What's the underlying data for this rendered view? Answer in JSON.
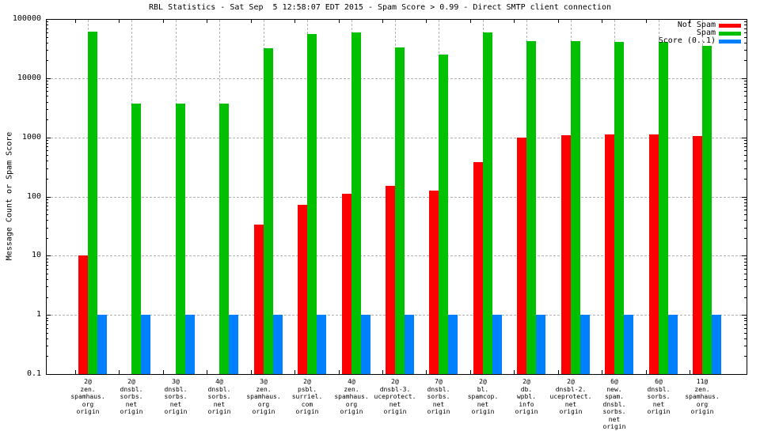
{
  "chart_data": {
    "type": "bar",
    "title": "RBL Statistics - Sat Sep  5 12:58:07 EDT 2015 - Spam Score > 0.99 - Direct SMTP client connection",
    "ylabel": "Message Count or Spam Score",
    "xlabel": "",
    "y_scale": "log",
    "ylim": [
      0.1,
      100000
    ],
    "grid": true,
    "legend_position": "top-right-inside",
    "yticks": [
      {
        "value": 100000,
        "label": "100000"
      },
      {
        "value": 10000,
        "label": "10000"
      },
      {
        "value": 1000,
        "label": "1000"
      },
      {
        "value": 100,
        "label": "100"
      },
      {
        "value": 10,
        "label": "10"
      },
      {
        "value": 1,
        "label": "1"
      },
      {
        "value": 0.1,
        "label": "0.1"
      }
    ],
    "categories": [
      [
        "2@",
        "zen.",
        "spamhaus.",
        "org",
        "origin"
      ],
      [
        "2@",
        "dnsbl.",
        "sorbs.",
        "net",
        "origin"
      ],
      [
        "3@",
        "dnsbl.",
        "sorbs.",
        "net",
        "origin"
      ],
      [
        "4@",
        "dnsbl.",
        "sorbs.",
        "net",
        "origin"
      ],
      [
        "3@",
        "zen.",
        "spamhaus.",
        "org",
        "origin"
      ],
      [
        "2@",
        "psbl.",
        "surriel.",
        "com",
        "origin"
      ],
      [
        "4@",
        "zen.",
        "spamhaus.",
        "org",
        "origin"
      ],
      [
        "2@",
        "dnsbl-3.",
        "uceprotect.",
        "net",
        "origin"
      ],
      [
        "7@",
        "dnsbl.",
        "sorbs.",
        "net",
        "origin"
      ],
      [
        "2@",
        "bl.",
        "spamcop.",
        "net",
        "origin"
      ],
      [
        "2@",
        "db.",
        "wpbl.",
        "info",
        "origin"
      ],
      [
        "2@",
        "dnsbl-2.",
        "uceprotect.",
        "net",
        "origin"
      ],
      [
        "6@",
        "new.",
        "spam.",
        "dnsbl.",
        "sorbs.",
        "net",
        "origin"
      ],
      [
        "6@",
        "dnsbl.",
        "sorbs.",
        "net",
        "origin"
      ],
      [
        "11@",
        "zen.",
        "spamhaus.",
        "org",
        "origin"
      ]
    ],
    "series": [
      {
        "name": "Not Spam",
        "color": "#ff0000",
        "values": [
          10,
          null,
          null,
          null,
          34,
          73,
          110,
          150,
          125,
          380,
          1000,
          1090,
          1130,
          1130,
          1050
        ]
      },
      {
        "name": "Spam",
        "color": "#00c000",
        "values": [
          62000,
          3700,
          3700,
          3700,
          32000,
          55000,
          60000,
          33000,
          25000,
          60000,
          42000,
          42000,
          41000,
          41000,
          35000
        ]
      },
      {
        "name": "Score (0..1)",
        "color": "#0080ff",
        "values": [
          1,
          1,
          1,
          1,
          1,
          1,
          1,
          1,
          1,
          1,
          1,
          1,
          1,
          1,
          1
        ]
      }
    ],
    "colors": {
      "background": "#ffffff",
      "axis": "#000000",
      "grid": "#b0b0b0",
      "text": "#000000"
    }
  }
}
